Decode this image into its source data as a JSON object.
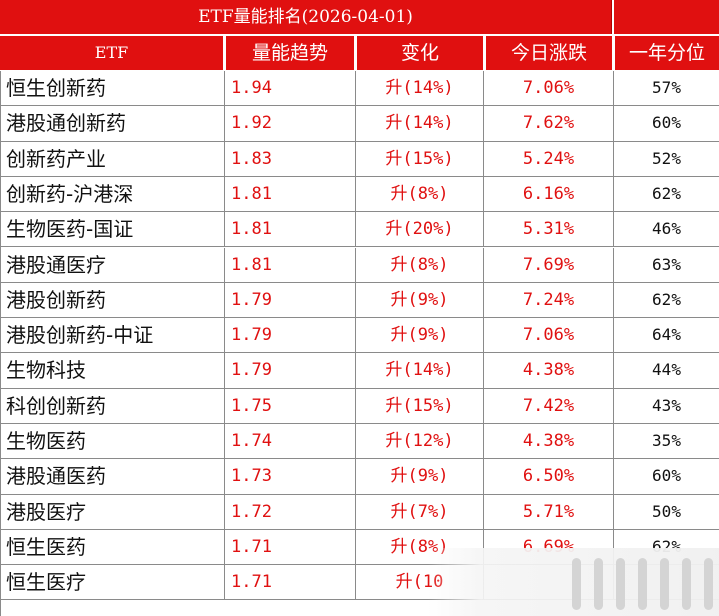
{
  "title": "ETF量能排名(2026-04-01)",
  "headers": {
    "etf": "ETF",
    "volume_trend": "量能趋势",
    "change": "变化",
    "today_change": "今日涨跌",
    "year_percentile": "一年分位"
  },
  "colors": {
    "header_bg": "#e01010",
    "header_text": "#ffffff",
    "value_red": "#e01010",
    "text_dark": "#111111",
    "grid": "#8a8a8a"
  },
  "rows": [
    {
      "name": "恒生创新药",
      "volume": "1.94",
      "change": "升(14%)",
      "today": "7.06%",
      "year": "57%"
    },
    {
      "name": "港股通创新药",
      "volume": "1.92",
      "change": "升(14%)",
      "today": "7.62%",
      "year": "60%"
    },
    {
      "name": "创新药产业",
      "volume": "1.83",
      "change": "升(15%)",
      "today": "5.24%",
      "year": "52%"
    },
    {
      "name": "创新药-沪港深",
      "volume": "1.81",
      "change": "升(8%)",
      "today": "6.16%",
      "year": "62%"
    },
    {
      "name": "生物医药-国证",
      "volume": "1.81",
      "change": "升(20%)",
      "today": "5.31%",
      "year": "46%"
    },
    {
      "name": "港股通医疗",
      "volume": "1.81",
      "change": "升(8%)",
      "today": "7.69%",
      "year": "63%"
    },
    {
      "name": "港股创新药",
      "volume": "1.79",
      "change": "升(9%)",
      "today": "7.24%",
      "year": "62%"
    },
    {
      "name": "港股创新药-中证",
      "volume": "1.79",
      "change": "升(9%)",
      "today": "7.06%",
      "year": "64%"
    },
    {
      "name": "生物科技",
      "volume": "1.79",
      "change": "升(14%)",
      "today": "4.38%",
      "year": "44%"
    },
    {
      "name": "科创创新药",
      "volume": "1.75",
      "change": "升(15%)",
      "today": "7.42%",
      "year": "43%"
    },
    {
      "name": "生物医药",
      "volume": "1.74",
      "change": "升(12%)",
      "today": "4.38%",
      "year": "35%"
    },
    {
      "name": "港股通医药",
      "volume": "1.73",
      "change": "升(9%)",
      "today": "6.50%",
      "year": "60%"
    },
    {
      "name": "港股医疗",
      "volume": "1.72",
      "change": "升(7%)",
      "today": "5.71%",
      "year": "50%"
    },
    {
      "name": "恒生医药",
      "volume": "1.71",
      "change": "升(8%)",
      "today": "6.69%",
      "year": "62%"
    },
    {
      "name": "恒生医疗",
      "volume": "1.71",
      "change": "升(10",
      "today": "",
      "year": ""
    }
  ]
}
